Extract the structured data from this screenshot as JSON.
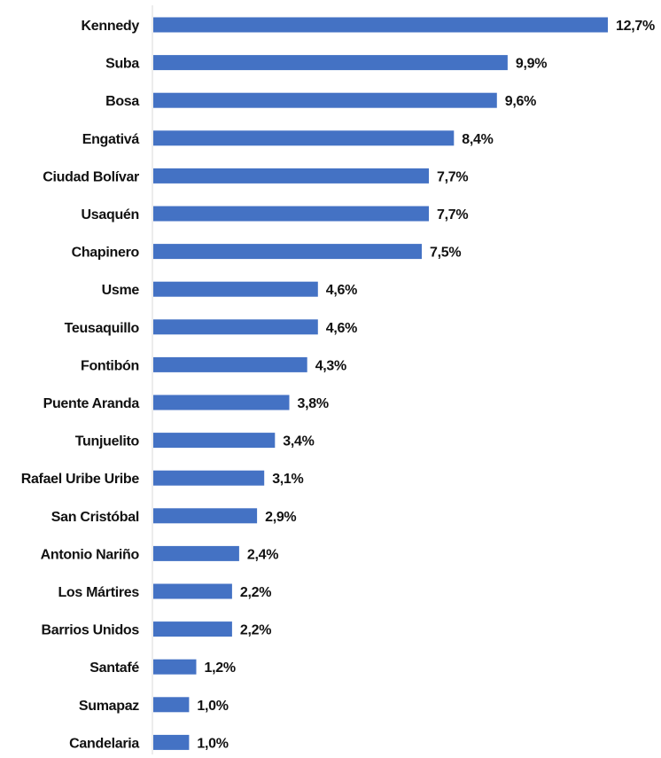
{
  "chart_data": {
    "type": "bar",
    "orientation": "horizontal",
    "categories": [
      "Kennedy",
      "Suba",
      "Bosa",
      "Engativá",
      "Ciudad Bolívar",
      "Usaquén",
      "Chapinero",
      "Usme",
      "Teusaquillo",
      "Fontibón",
      "Puente Aranda",
      "Tunjuelito",
      "Rafael Uribe Uribe",
      "San Cristóbal",
      "Antonio Nariño",
      "Los Mártires",
      "Barrios Unidos",
      "Santafé",
      "Sumapaz",
      "Candelaria"
    ],
    "values": [
      12.7,
      9.9,
      9.6,
      8.4,
      7.7,
      7.7,
      7.5,
      4.6,
      4.6,
      4.3,
      3.8,
      3.4,
      3.1,
      2.9,
      2.4,
      2.2,
      2.2,
      1.2,
      1.0,
      1.0
    ],
    "value_labels": [
      "12,7%",
      "9,9%",
      "9,6%",
      "8,4%",
      "7,7%",
      "7,7%",
      "7,5%",
      "4,6%",
      "4,6%",
      "4,3%",
      "3,8%",
      "3,4%",
      "3,1%",
      "2,9%",
      "2,4%",
      "2,2%",
      "2,2%",
      "1,2%",
      "1,0%",
      "1,0%"
    ],
    "title": "",
    "xlabel": "",
    "ylabel": "",
    "xlim": [
      0,
      12.7
    ],
    "grid": false,
    "legend": false,
    "bar_color": "#4472C4"
  }
}
